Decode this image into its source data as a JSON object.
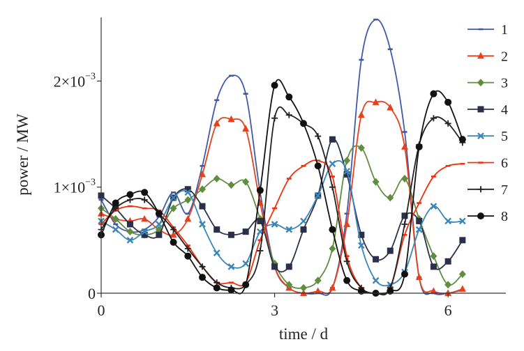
{
  "chart_data": {
    "type": "line",
    "xlabel": "time / d",
    "ylabel": "power / MW",
    "xlim": [
      0,
      7
    ],
    "ylim": [
      0,
      0.0026
    ],
    "x_ticks": [
      0,
      3,
      6
    ],
    "x_tick_labels": [
      "0",
      "3",
      "6"
    ],
    "y_ticks": [
      0,
      0.001,
      0.002
    ],
    "y_tick_labels": [
      {
        "base": "0",
        "exp": ""
      },
      {
        "base": "1×10",
        "exp": "−3"
      },
      {
        "base": "2×10",
        "exp": "−3"
      }
    ],
    "grid": false,
    "legend_position": "right",
    "x": [
      0.0,
      0.25,
      0.5,
      0.75,
      1.0,
      1.25,
      1.5,
      1.75,
      2.0,
      2.25,
      2.5,
      2.75,
      3.0,
      3.25,
      3.5,
      3.75,
      4.0,
      4.25,
      4.5,
      4.75,
      5.0,
      5.25,
      5.5,
      5.75,
      6.0,
      6.25
    ],
    "series": [
      {
        "name": "1",
        "color": "#3f5aa8",
        "marker": "dash",
        "values": [
          0.00088,
          0.00065,
          0.00058,
          0.0006,
          0.00072,
          0.00095,
          0.00075,
          0.0012,
          0.00182,
          0.00205,
          0.00188,
          0.00095,
          0.00025,
          5e-05,
          0.0,
          0.0,
          5e-05,
          0.00075,
          0.0022,
          0.00258,
          0.0023,
          0.00152,
          0.00015,
          0.0,
          0.0,
          3e-05
        ]
      },
      {
        "name": "2",
        "color": "#e8401c",
        "marker": "triangle",
        "values": [
          0.00075,
          0.0007,
          0.00068,
          0.0007,
          0.0006,
          0.00055,
          0.0007,
          0.00112,
          0.0016,
          0.00164,
          0.00155,
          0.00085,
          0.00025,
          5e-05,
          0.0,
          2e-05,
          5e-05,
          0.00065,
          0.00168,
          0.0018,
          0.00175,
          0.00138,
          0.00015,
          2e-05,
          0.0,
          4e-05
        ]
      },
      {
        "name": "3",
        "color": "#5e8e3e",
        "marker": "diamond",
        "values": [
          0.0008,
          0.0007,
          0.00058,
          0.00055,
          0.0006,
          0.0008,
          0.00088,
          0.00098,
          0.00108,
          0.00102,
          0.00105,
          0.0007,
          0.00028,
          8e-05,
          5e-05,
          0.00012,
          0.00042,
          0.00125,
          0.00137,
          0.00105,
          0.0009,
          0.00108,
          0.0007,
          0.00035,
          8e-05,
          0.00018
        ]
      },
      {
        "name": "4",
        "color": "#2b2f4a",
        "marker": "square",
        "values": [
          0.00092,
          0.0008,
          0.00065,
          0.00055,
          0.00055,
          0.0009,
          0.00098,
          0.00082,
          0.0006,
          0.00055,
          0.00058,
          0.00068,
          0.00025,
          0.00025,
          0.0006,
          0.00092,
          0.00145,
          0.00112,
          0.00055,
          0.00032,
          0.0004,
          0.00073,
          0.00068,
          0.00025,
          0.0003,
          0.0005
        ]
      },
      {
        "name": "5",
        "color": "#3a86b8",
        "marker": "x",
        "values": [
          0.00068,
          0.0006,
          0.0005,
          0.00058,
          0.00065,
          0.0009,
          0.00095,
          0.00065,
          0.00038,
          0.00025,
          0.00028,
          0.00058,
          0.00065,
          0.0006,
          0.00068,
          0.00092,
          0.00122,
          0.00115,
          0.00045,
          0.00012,
          8e-05,
          0.0002,
          0.0006,
          0.00082,
          0.00068,
          0.00068
        ]
      },
      {
        "name": "6",
        "color": "#f0300c",
        "marker": "dash",
        "values": [
          0.00065,
          0.00078,
          0.00082,
          0.0008,
          0.00078,
          0.00062,
          0.00045,
          0.00025,
          0.0001,
          0.0001,
          0.0001,
          0.0005,
          0.0008,
          0.00108,
          0.0012,
          0.00125,
          0.0011,
          0.00035,
          5e-05,
          0.0,
          5e-05,
          0.00055,
          0.00085,
          0.0011,
          0.0012,
          0.00122
        ]
      },
      {
        "name": "7",
        "color": "#222222",
        "marker": "plus",
        "values": [
          0.0006,
          0.0008,
          0.00088,
          0.00088,
          0.00075,
          0.0006,
          0.00042,
          0.00025,
          0.0001,
          5e-05,
          8e-05,
          0.0004,
          0.00165,
          0.00168,
          0.0016,
          0.00148,
          0.001,
          0.0003,
          5e-05,
          0.0,
          5e-05,
          0.00065,
          0.0014,
          0.00165,
          0.0016,
          0.00142
        ]
      },
      {
        "name": "8",
        "color": "#111111",
        "marker": "circle",
        "values": [
          0.00055,
          0.00085,
          0.00093,
          0.00095,
          0.00075,
          0.00048,
          0.00035,
          0.00015,
          5e-05,
          3e-05,
          8e-05,
          0.00097,
          0.00196,
          0.00185,
          0.0016,
          0.0012,
          0.0006,
          0.00012,
          2e-05,
          0.0,
          2e-05,
          0.00018,
          0.00138,
          0.00188,
          0.0018,
          0.00145
        ]
      }
    ]
  }
}
